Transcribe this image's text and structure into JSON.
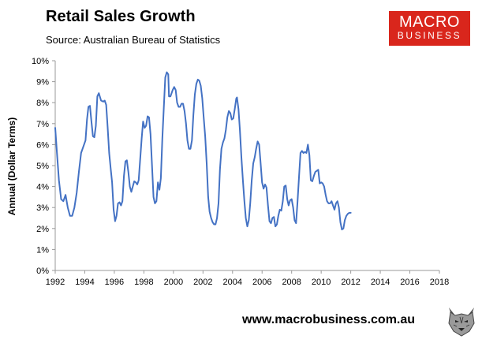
{
  "header": {
    "title": "Retail Sales Growth",
    "source": "Source: Australian Bureau of Statistics"
  },
  "logo": {
    "line1": "MACRO",
    "line2": "BUSINESS",
    "color": "#d9261c"
  },
  "footer": {
    "url": "www.macrobusiness.com.au",
    "icon": "wolf-mascot-icon"
  },
  "chart_data": {
    "type": "line",
    "title": "Retail Sales Growth",
    "xlabel": "",
    "ylabel": "Annual (Dollar Terms)",
    "xlim": [
      1992,
      2018
    ],
    "ylim": [
      0,
      10
    ],
    "x_ticks": [
      "1992",
      "1994",
      "1996",
      "1998",
      "2000",
      "2002",
      "2004",
      "2006",
      "2008",
      "2010",
      "2012",
      "2014",
      "2016",
      "2018"
    ],
    "y_ticks": [
      "0%",
      "1%",
      "2%",
      "3%",
      "4%",
      "5%",
      "6%",
      "7%",
      "8%",
      "9%",
      "10%"
    ],
    "grid": false,
    "line_color": "#4472c4",
    "series": [
      {
        "name": "Retail sales growth (annual, dollar terms)",
        "points": [
          [
            1992.0,
            6.8
          ],
          [
            1992.12,
            5.6
          ],
          [
            1992.25,
            4.3
          ],
          [
            1992.4,
            3.4
          ],
          [
            1992.55,
            3.3
          ],
          [
            1992.7,
            3.6
          ],
          [
            1992.85,
            3.0
          ],
          [
            1993.0,
            2.6
          ],
          [
            1993.15,
            2.6
          ],
          [
            1993.3,
            3.0
          ],
          [
            1993.45,
            3.7
          ],
          [
            1993.6,
            4.7
          ],
          [
            1993.75,
            5.6
          ],
          [
            1993.9,
            5.9
          ],
          [
            1994.05,
            6.2
          ],
          [
            1994.15,
            7.2
          ],
          [
            1994.25,
            7.8
          ],
          [
            1994.35,
            7.85
          ],
          [
            1994.45,
            7.1
          ],
          [
            1994.55,
            6.4
          ],
          [
            1994.65,
            6.35
          ],
          [
            1994.75,
            6.9
          ],
          [
            1994.85,
            8.3
          ],
          [
            1994.95,
            8.45
          ],
          [
            1995.1,
            8.1
          ],
          [
            1995.25,
            8.05
          ],
          [
            1995.35,
            8.1
          ],
          [
            1995.45,
            7.9
          ],
          [
            1995.55,
            6.8
          ],
          [
            1995.65,
            5.6
          ],
          [
            1995.75,
            4.9
          ],
          [
            1995.85,
            4.2
          ],
          [
            1995.95,
            2.9
          ],
          [
            1996.05,
            2.35
          ],
          [
            1996.15,
            2.6
          ],
          [
            1996.25,
            3.2
          ],
          [
            1996.35,
            3.25
          ],
          [
            1996.45,
            3.1
          ],
          [
            1996.55,
            3.3
          ],
          [
            1996.65,
            4.5
          ],
          [
            1996.75,
            5.2
          ],
          [
            1996.85,
            5.25
          ],
          [
            1996.95,
            4.7
          ],
          [
            1997.05,
            4.0
          ],
          [
            1997.15,
            3.75
          ],
          [
            1997.25,
            4.0
          ],
          [
            1997.35,
            4.25
          ],
          [
            1997.45,
            4.2
          ],
          [
            1997.55,
            4.1
          ],
          [
            1997.65,
            4.3
          ],
          [
            1997.75,
            5.3
          ],
          [
            1997.85,
            6.3
          ],
          [
            1997.95,
            7.1
          ],
          [
            1998.05,
            6.8
          ],
          [
            1998.15,
            6.9
          ],
          [
            1998.25,
            7.35
          ],
          [
            1998.35,
            7.3
          ],
          [
            1998.45,
            6.5
          ],
          [
            1998.55,
            5.0
          ],
          [
            1998.65,
            3.5
          ],
          [
            1998.75,
            3.2
          ],
          [
            1998.85,
            3.3
          ],
          [
            1998.95,
            4.2
          ],
          [
            1999.05,
            3.85
          ],
          [
            1999.15,
            4.4
          ],
          [
            1999.25,
            6.3
          ],
          [
            1999.35,
            7.8
          ],
          [
            1999.45,
            9.2
          ],
          [
            1999.55,
            9.45
          ],
          [
            1999.65,
            9.35
          ],
          [
            1999.7,
            8.3
          ],
          [
            1999.8,
            8.3
          ],
          [
            1999.95,
            8.6
          ],
          [
            2000.05,
            8.75
          ],
          [
            2000.15,
            8.6
          ],
          [
            2000.25,
            8.0
          ],
          [
            2000.35,
            7.8
          ],
          [
            2000.45,
            7.8
          ],
          [
            2000.55,
            7.95
          ],
          [
            2000.65,
            7.95
          ],
          [
            2000.75,
            7.6
          ],
          [
            2000.85,
            7.0
          ],
          [
            2000.95,
            6.2
          ],
          [
            2001.05,
            5.8
          ],
          [
            2001.15,
            5.8
          ],
          [
            2001.25,
            6.2
          ],
          [
            2001.35,
            7.4
          ],
          [
            2001.45,
            8.4
          ],
          [
            2001.55,
            8.9
          ],
          [
            2001.65,
            9.1
          ],
          [
            2001.75,
            9.05
          ],
          [
            2001.85,
            8.8
          ],
          [
            2001.95,
            8.2
          ],
          [
            2002.05,
            7.3
          ],
          [
            2002.15,
            6.4
          ],
          [
            2002.25,
            5.1
          ],
          [
            2002.35,
            3.5
          ],
          [
            2002.45,
            2.8
          ],
          [
            2002.55,
            2.5
          ],
          [
            2002.65,
            2.3
          ],
          [
            2002.75,
            2.2
          ],
          [
            2002.85,
            2.2
          ],
          [
            2002.95,
            2.5
          ],
          [
            2003.05,
            3.2
          ],
          [
            2003.15,
            4.8
          ],
          [
            2003.25,
            5.8
          ],
          [
            2003.35,
            6.1
          ],
          [
            2003.45,
            6.3
          ],
          [
            2003.55,
            6.7
          ],
          [
            2003.65,
            7.3
          ],
          [
            2003.75,
            7.6
          ],
          [
            2003.85,
            7.5
          ],
          [
            2003.95,
            7.2
          ],
          [
            2004.05,
            7.25
          ],
          [
            2004.15,
            7.7
          ],
          [
            2004.25,
            8.2
          ],
          [
            2004.3,
            8.25
          ],
          [
            2004.4,
            7.7
          ],
          [
            2004.5,
            6.7
          ],
          [
            2004.6,
            5.4
          ],
          [
            2004.7,
            4.3
          ],
          [
            2004.8,
            3.3
          ],
          [
            2004.9,
            2.5
          ],
          [
            2005.0,
            2.1
          ],
          [
            2005.1,
            2.4
          ],
          [
            2005.2,
            3.2
          ],
          [
            2005.3,
            4.3
          ],
          [
            2005.4,
            5.1
          ],
          [
            2005.5,
            5.4
          ],
          [
            2005.6,
            5.8
          ],
          [
            2005.7,
            6.15
          ],
          [
            2005.8,
            6.0
          ],
          [
            2005.9,
            5.1
          ],
          [
            2006.0,
            4.2
          ],
          [
            2006.1,
            3.9
          ],
          [
            2006.2,
            4.1
          ],
          [
            2006.3,
            3.95
          ],
          [
            2006.4,
            3.1
          ],
          [
            2006.5,
            2.35
          ],
          [
            2006.6,
            2.25
          ],
          [
            2006.7,
            2.5
          ],
          [
            2006.8,
            2.55
          ],
          [
            2006.9,
            2.1
          ],
          [
            2007.0,
            2.2
          ],
          [
            2007.1,
            2.6
          ],
          [
            2007.2,
            2.9
          ],
          [
            2007.3,
            2.85
          ],
          [
            2007.4,
            3.3
          ],
          [
            2007.5,
            4.0
          ],
          [
            2007.6,
            4.05
          ],
          [
            2007.7,
            3.4
          ],
          [
            2007.8,
            3.1
          ],
          [
            2007.9,
            3.35
          ],
          [
            2008.0,
            3.4
          ],
          [
            2008.1,
            3.0
          ],
          [
            2008.2,
            2.4
          ],
          [
            2008.3,
            2.25
          ],
          [
            2008.4,
            3.3
          ],
          [
            2008.5,
            4.5
          ],
          [
            2008.6,
            5.6
          ],
          [
            2008.7,
            5.7
          ],
          [
            2008.8,
            5.6
          ],
          [
            2008.9,
            5.65
          ],
          [
            2009.0,
            5.6
          ],
          [
            2009.1,
            6.0
          ],
          [
            2009.2,
            5.5
          ],
          [
            2009.3,
            4.3
          ],
          [
            2009.4,
            4.25
          ],
          [
            2009.5,
            4.5
          ],
          [
            2009.6,
            4.7
          ],
          [
            2009.7,
            4.75
          ],
          [
            2009.8,
            4.8
          ],
          [
            2009.9,
            4.15
          ],
          [
            2010.0,
            4.2
          ],
          [
            2010.1,
            4.15
          ],
          [
            2010.2,
            4.0
          ],
          [
            2010.3,
            3.6
          ],
          [
            2010.4,
            3.3
          ],
          [
            2010.5,
            3.2
          ],
          [
            2010.6,
            3.2
          ],
          [
            2010.7,
            3.3
          ],
          [
            2010.8,
            3.1
          ],
          [
            2010.9,
            2.9
          ],
          [
            2011.0,
            3.2
          ],
          [
            2011.1,
            3.3
          ],
          [
            2011.2,
            3.0
          ],
          [
            2011.3,
            2.3
          ],
          [
            2011.4,
            1.95
          ],
          [
            2011.5,
            2.0
          ],
          [
            2011.6,
            2.4
          ],
          [
            2011.7,
            2.6
          ],
          [
            2011.8,
            2.7
          ],
          [
            2011.9,
            2.75
          ],
          [
            2012.0,
            2.75
          ]
        ]
      }
    ]
  }
}
